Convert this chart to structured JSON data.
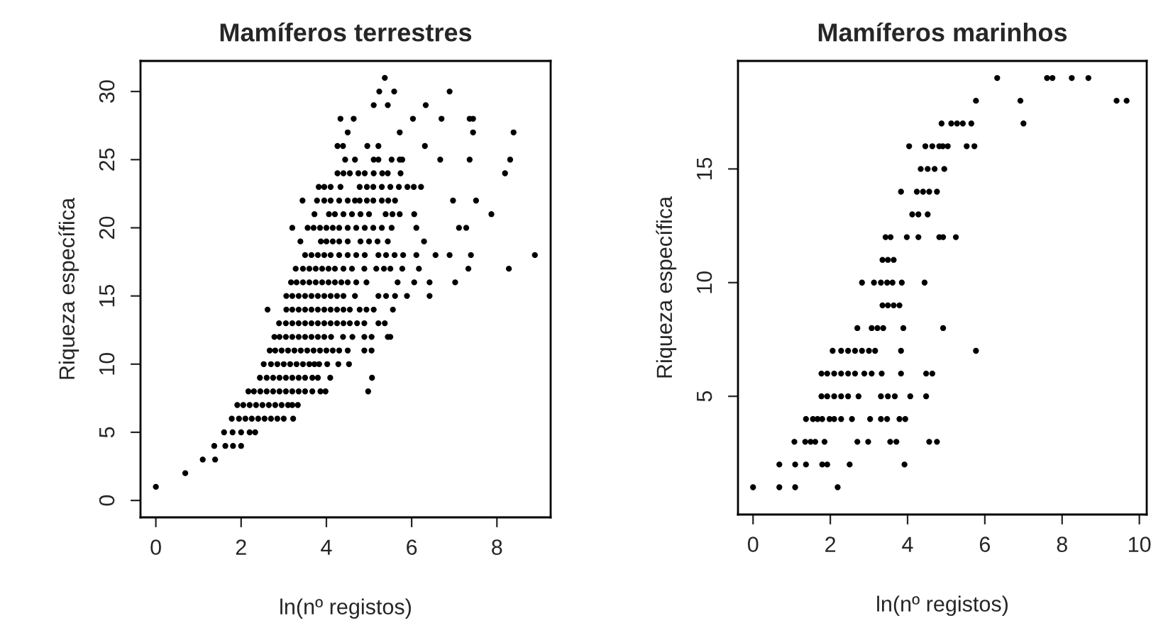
{
  "chart_data": [
    {
      "type": "scatter",
      "title": "Mamíferos terrestres",
      "xlabel": "ln(nº registos)",
      "ylabel": "Riqueza específica",
      "xlim": [
        -0.36,
        9.26
      ],
      "ylim": [
        -1.24,
        32.24
      ],
      "xticks": [
        0,
        2,
        4,
        6,
        8
      ],
      "yticks": [
        0,
        5,
        10,
        15,
        20,
        25,
        30
      ],
      "grid": false,
      "legend": false,
      "marker": "circle",
      "series": [
        {
          "color": "#000000",
          "x": [
            0,
            0.69,
            1.1,
            1.39,
            1.37,
            1.63,
            1.81,
            2.0,
            1.6,
            1.8,
            2.0,
            2.2,
            2.33
          ],
          "values": [
            1,
            2,
            3,
            3,
            4,
            4,
            4,
            4,
            5,
            5,
            5,
            5,
            5
          ]
        },
        {
          "color": "#000000",
          "x": [
            1.78,
            1.95,
            2.1,
            2.25,
            2.4,
            2.55,
            2.7,
            2.85,
            3.0,
            3.22
          ],
          "values": [
            6,
            6,
            6,
            6,
            6,
            6,
            6,
            6,
            6,
            6
          ]
        },
        {
          "color": "#000000",
          "x": [
            1.91,
            2.05,
            2.2,
            2.35,
            2.5,
            2.65,
            2.8,
            2.95,
            3.1,
            3.2,
            3.33
          ],
          "values": [
            7,
            7,
            7,
            7,
            7,
            7,
            7,
            7,
            7,
            7,
            7
          ]
        },
        {
          "color": "#000000",
          "x": [
            2.17,
            2.3,
            2.45,
            2.6,
            2.75,
            2.9,
            3.05,
            3.2,
            3.35,
            3.5,
            3.67,
            3.86,
            3.98,
            4.98
          ],
          "values": [
            8,
            8,
            8,
            8,
            8,
            8,
            8,
            8,
            8,
            8,
            8,
            8,
            8,
            8
          ]
        },
        {
          "color": "#000000",
          "x": [
            2.44,
            2.6,
            2.75,
            2.9,
            3.05,
            3.2,
            3.35,
            3.5,
            3.67,
            3.8,
            4.09,
            5.07
          ],
          "values": [
            9,
            9,
            9,
            9,
            9,
            9,
            9,
            9,
            9,
            9,
            9,
            9
          ]
        },
        {
          "color": "#000000",
          "x": [
            2.53,
            2.7,
            2.85,
            3.0,
            3.15,
            3.3,
            3.45,
            3.6,
            3.72,
            3.83,
            4.02,
            4.28,
            4.53
          ],
          "values": [
            10,
            10,
            10,
            10,
            10,
            10,
            10,
            10,
            10,
            10,
            10,
            10,
            10
          ]
        },
        {
          "color": "#000000",
          "x": [
            2.67,
            2.8,
            2.95,
            3.1,
            3.25,
            3.4,
            3.55,
            3.7,
            3.85,
            4.0,
            4.15,
            4.3,
            4.5,
            4.89,
            5.06
          ],
          "values": [
            11,
            11,
            11,
            11,
            11,
            11,
            11,
            11,
            11,
            11,
            11,
            11,
            11,
            11,
            11
          ]
        },
        {
          "color": "#000000",
          "x": [
            2.78,
            2.9,
            3.05,
            3.2,
            3.35,
            3.5,
            3.65,
            3.8,
            3.95,
            4.11,
            4.39,
            4.61,
            4.89,
            5.06,
            5.44,
            5.5
          ],
          "values": [
            12,
            12,
            12,
            12,
            12,
            12,
            12,
            12,
            12,
            12,
            12,
            12,
            12,
            12,
            12,
            12
          ]
        },
        {
          "color": "#000000",
          "x": [
            2.89,
            3.05,
            3.2,
            3.35,
            3.5,
            3.65,
            3.8,
            3.95,
            4.1,
            4.25,
            4.4,
            4.55,
            4.72,
            4.89,
            5.22,
            5.37
          ],
          "values": [
            13,
            13,
            13,
            13,
            13,
            13,
            13,
            13,
            13,
            13,
            13,
            13,
            13,
            13,
            13,
            13
          ]
        },
        {
          "color": "#000000",
          "x": [
            2.62,
            3.06,
            3.2,
            3.35,
            3.5,
            3.65,
            3.8,
            3.95,
            4.1,
            4.25,
            4.4,
            4.55,
            4.78,
            4.94,
            5.11,
            5.56
          ],
          "values": [
            14,
            14,
            14,
            14,
            14,
            14,
            14,
            14,
            14,
            14,
            14,
            14,
            14,
            14,
            14,
            14
          ]
        },
        {
          "color": "#000000",
          "x": [
            3.06,
            3.2,
            3.35,
            3.5,
            3.65,
            3.8,
            3.95,
            4.1,
            4.25,
            4.4,
            4.67,
            5.22,
            5.4,
            5.61,
            5.89,
            6.42
          ],
          "values": [
            15,
            15,
            15,
            15,
            15,
            15,
            15,
            15,
            15,
            15,
            15,
            15,
            15,
            15,
            15,
            15
          ]
        },
        {
          "color": "#000000",
          "x": [
            3.17,
            3.3,
            3.45,
            3.6,
            3.75,
            3.9,
            4.05,
            4.2,
            4.35,
            4.5,
            4.7,
            4.94,
            5.67,
            6.06,
            6.42,
            7.02
          ],
          "values": [
            16,
            16,
            16,
            16,
            16,
            16,
            16,
            16,
            16,
            16,
            16,
            16,
            16,
            16,
            16,
            16
          ]
        },
        {
          "color": "#000000",
          "x": [
            3.28,
            3.45,
            3.6,
            3.75,
            3.9,
            4.05,
            4.2,
            4.4,
            4.6,
            4.89,
            5.17,
            5.35,
            5.5,
            5.78,
            6.17,
            7.33,
            8.28
          ],
          "values": [
            17,
            17,
            17,
            17,
            17,
            17,
            17,
            17,
            17,
            17,
            17,
            17,
            17,
            17,
            17,
            17,
            17
          ]
        },
        {
          "color": "#000000",
          "x": [
            3.5,
            3.65,
            3.8,
            3.95,
            4.1,
            4.3,
            4.5,
            4.7,
            4.9,
            5.22,
            5.4,
            5.6,
            5.8,
            6.11,
            6.56,
            6.89,
            7.39,
            8.89
          ],
          "values": [
            18,
            18,
            18,
            18,
            18,
            18,
            18,
            18,
            18,
            18,
            18,
            18,
            18,
            18,
            18,
            18,
            18,
            18
          ]
        },
        {
          "color": "#000000",
          "x": [
            3.39,
            3.87,
            4.0,
            4.15,
            4.3,
            4.5,
            4.8,
            5.0,
            5.2,
            5.44,
            6.29
          ],
          "values": [
            19,
            19,
            19,
            19,
            19,
            19,
            19,
            19,
            19,
            19,
            19
          ]
        },
        {
          "color": "#000000",
          "x": [
            3.2,
            3.56,
            3.7,
            3.85,
            4.0,
            4.15,
            4.3,
            4.5,
            4.7,
            4.9,
            5.1,
            5.3,
            5.53,
            6.11,
            7.11,
            7.28
          ],
          "values": [
            20,
            20,
            20,
            20,
            20,
            20,
            20,
            20,
            20,
            20,
            20,
            20,
            20,
            20,
            20,
            20
          ]
        },
        {
          "color": "#000000",
          "x": [
            3.72,
            4.06,
            4.2,
            4.4,
            4.6,
            4.8,
            5.0,
            5.39,
            5.55,
            5.72,
            6.06,
            7.87
          ],
          "values": [
            21,
            21,
            21,
            21,
            21,
            21,
            21,
            21,
            21,
            21,
            21,
            21
          ]
        },
        {
          "color": "#000000",
          "x": [
            3.44,
            3.78,
            3.95,
            4.1,
            4.3,
            4.5,
            4.67,
            4.78,
            4.95,
            5.1,
            5.3,
            5.45,
            5.61,
            6.97,
            7.51
          ],
          "values": [
            22,
            22,
            22,
            22,
            22,
            22,
            22,
            22,
            22,
            22,
            22,
            22,
            22,
            22,
            22
          ]
        },
        {
          "color": "#000000",
          "x": [
            3.82,
            3.95,
            4.1,
            4.33,
            4.78,
            4.95,
            5.1,
            5.3,
            5.5,
            5.7,
            5.9,
            6.05,
            6.22
          ],
          "values": [
            23,
            23,
            23,
            23,
            23,
            23,
            23,
            23,
            23,
            23,
            23,
            23,
            23
          ]
        },
        {
          "color": "#000000",
          "x": [
            4.26,
            4.4,
            4.55,
            4.75,
            4.9,
            5.11,
            5.31,
            5.44,
            5.74,
            8.19
          ],
          "values": [
            24,
            24,
            24,
            24,
            24,
            24,
            24,
            24,
            24,
            24
          ]
        },
        {
          "color": "#000000",
          "x": [
            4.44,
            4.67,
            5.11,
            5.22,
            5.53,
            5.72,
            5.78,
            6.67,
            7.36,
            8.31
          ],
          "values": [
            25,
            25,
            25,
            25,
            25,
            25,
            25,
            25,
            25,
            25
          ]
        },
        {
          "color": "#000000",
          "x": [
            4.26,
            4.39,
            4.96,
            5.22,
            6.31,
            4.5,
            5.72,
            7.44,
            8.39
          ],
          "values": [
            26,
            26,
            26,
            26,
            26,
            27,
            27,
            27,
            27
          ]
        },
        {
          "color": "#000000",
          "x": [
            4.33,
            4.64,
            6.03,
            6.7,
            7.36,
            7.44,
            5.11,
            5.44,
            6.33,
            5.24,
            5.59,
            6.89,
            5.37
          ],
          "values": [
            28,
            28,
            28,
            28,
            28,
            28,
            29,
            29,
            29,
            30,
            30,
            30,
            31
          ]
        }
      ]
    },
    {
      "type": "scatter",
      "title": "Mamíferos marinhos",
      "xlabel": "ln(nº registos)",
      "ylabel": "Riqueza específica",
      "xlim": [
        -0.39,
        10.19
      ],
      "ylim": [
        -0.2,
        19.75
      ],
      "xticks": [
        0,
        2,
        4,
        6,
        8,
        10
      ],
      "yticks": [
        5,
        10,
        15
      ],
      "grid": false,
      "legend": false,
      "marker": "circle",
      "series": [
        {
          "color": "#000000",
          "x": [
            0,
            0.68,
            1.09,
            2.19,
            0.68,
            1.09,
            1.37,
            1.79,
            1.92,
            2.5,
            3.92
          ],
          "values": [
            1,
            1,
            1,
            1,
            2,
            2,
            2,
            2,
            2,
            2,
            2
          ]
        },
        {
          "color": "#000000",
          "x": [
            1.07,
            1.35,
            1.49,
            1.61,
            1.85,
            2.7,
            2.98,
            3.55,
            3.71,
            4.56,
            4.76
          ],
          "values": [
            3,
            3,
            3,
            3,
            3,
            3,
            3,
            3,
            3,
            3,
            3
          ]
        },
        {
          "color": "#000000",
          "x": [
            1.37,
            1.55,
            1.67,
            1.79,
            1.98,
            2.1,
            2.28,
            2.56,
            3.03,
            3.31,
            3.47,
            3.79,
            3.94
          ],
          "values": [
            4,
            4,
            4,
            4,
            4,
            4,
            4,
            4,
            4,
            4,
            4,
            4,
            4
          ]
        },
        {
          "color": "#000000",
          "x": [
            1.77,
            1.92,
            2.1,
            2.28,
            2.46,
            2.73,
            3.31,
            3.49,
            3.67,
            4.07,
            4.48
          ],
          "values": [
            5,
            5,
            5,
            5,
            5,
            5,
            5,
            5,
            5,
            5,
            5
          ]
        },
        {
          "color": "#000000",
          "x": [
            1.77,
            1.92,
            2.1,
            2.28,
            2.46,
            2.64,
            2.88,
            3.07,
            3.33,
            3.83,
            4.48,
            4.64
          ],
          "values": [
            6,
            6,
            6,
            6,
            6,
            6,
            6,
            6,
            6,
            6,
            6,
            6
          ]
        },
        {
          "color": "#000000",
          "x": [
            2.06,
            2.28,
            2.46,
            2.64,
            2.82,
            3.0,
            3.16,
            3.83,
            5.77,
            2.7,
            3.07,
            3.22,
            3.37,
            3.89,
            4.92
          ],
          "values": [
            7,
            7,
            7,
            7,
            7,
            7,
            7,
            7,
            7,
            8,
            8,
            8,
            8,
            8,
            8
          ]
        },
        {
          "color": "#000000",
          "x": [
            3.35,
            3.49,
            3.64,
            3.79,
            2.82,
            3.13,
            3.31,
            3.47,
            3.61,
            3.85,
            4.44,
            3.35,
            3.49,
            3.64
          ],
          "values": [
            9,
            9,
            9,
            9,
            10,
            10,
            10,
            10,
            10,
            10,
            10,
            11,
            11,
            11
          ]
        },
        {
          "color": "#000000",
          "x": [
            3.43,
            3.56,
            3.98,
            4.28,
            4.82,
            4.92,
            5.25,
            4.12,
            4.28,
            4.52,
            3.83,
            4.24,
            4.4,
            4.56,
            4.76
          ],
          "values": [
            12,
            12,
            12,
            12,
            12,
            12,
            12,
            13,
            13,
            13,
            14,
            14,
            14,
            14,
            14
          ]
        },
        {
          "color": "#000000",
          "x": [
            4.34,
            4.52,
            4.7,
            4.95,
            4.04,
            4.46,
            4.64,
            4.82,
            4.91,
            5.04,
            5.53,
            5.73
          ],
          "values": [
            15,
            15,
            15,
            15,
            16,
            16,
            16,
            16,
            16,
            16,
            16,
            16
          ]
        },
        {
          "color": "#000000",
          "x": [
            4.88,
            5.13,
            5.28,
            5.43,
            5.65,
            7.0,
            5.77,
            6.92,
            9.41,
            9.67,
            6.32,
            7.61,
            7.75,
            8.25,
            8.68
          ],
          "values": [
            17,
            17,
            17,
            17,
            17,
            17,
            18,
            18,
            18,
            18,
            19,
            19,
            19,
            19,
            19
          ]
        }
      ]
    }
  ]
}
